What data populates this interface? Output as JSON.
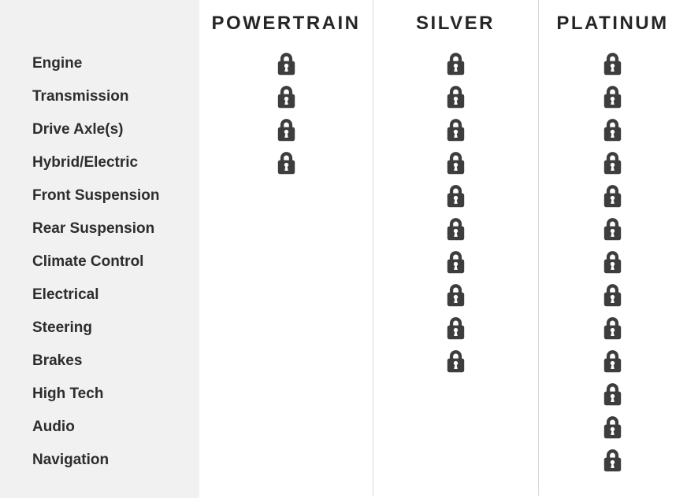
{
  "categories": [
    "Engine",
    "Transmission",
    "Drive Axle(s)",
    "Hybrid/Electric",
    "Front Suspension",
    "Rear Suspension",
    "Climate Control",
    "Electrical",
    "Steering",
    "Brakes",
    "High Tech",
    "Audio",
    "Navigation"
  ],
  "plans": [
    {
      "name": "POWERTRAIN",
      "covered": [
        true,
        true,
        true,
        true,
        false,
        false,
        false,
        false,
        false,
        false,
        false,
        false,
        false
      ]
    },
    {
      "name": "SILVER",
      "covered": [
        true,
        true,
        true,
        true,
        true,
        true,
        true,
        true,
        true,
        true,
        false,
        false,
        false
      ]
    },
    {
      "name": "PLATINUM",
      "covered": [
        true,
        true,
        true,
        true,
        true,
        true,
        true,
        true,
        true,
        true,
        true,
        true,
        true
      ]
    }
  ],
  "icons": {
    "covered_indicator": "lock-icon"
  },
  "colors": {
    "sidebar_bg": "#f1f1f1",
    "divider": "#d9d9d9",
    "lock": "#3d3d3d",
    "header_text": "#262626",
    "label_text": "#2d2d2d",
    "page_bg": "#ffffff"
  }
}
